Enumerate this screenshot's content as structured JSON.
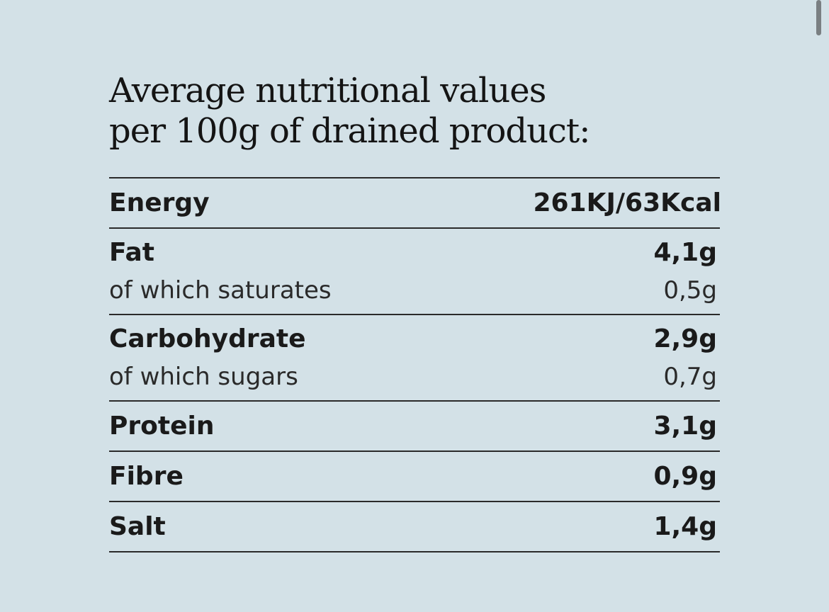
{
  "heading": {
    "line1": "Average nutritional values",
    "line2": "per 100g of drained product:"
  },
  "nutrients": {
    "energy": {
      "label": "Energy",
      "value": "261KJ/63Kcal"
    },
    "fat": {
      "label": "Fat",
      "value": "4,1g"
    },
    "saturates": {
      "label": "of which saturates",
      "value": "0,5g"
    },
    "carbohydrate": {
      "label": "Carbohydrate",
      "value": "2,9g"
    },
    "sugars": {
      "label": "of which sugars",
      "value": "0,7g"
    },
    "protein": {
      "label": "Protein",
      "value": "3,1g"
    },
    "fibre": {
      "label": "Fibre",
      "value": "0,9g"
    },
    "salt": {
      "label": "Salt",
      "value": "1,4g"
    }
  },
  "colors": {
    "background": "#d3e1e7",
    "text": "#1a1a1a",
    "rule": "#2a2a2a"
  }
}
